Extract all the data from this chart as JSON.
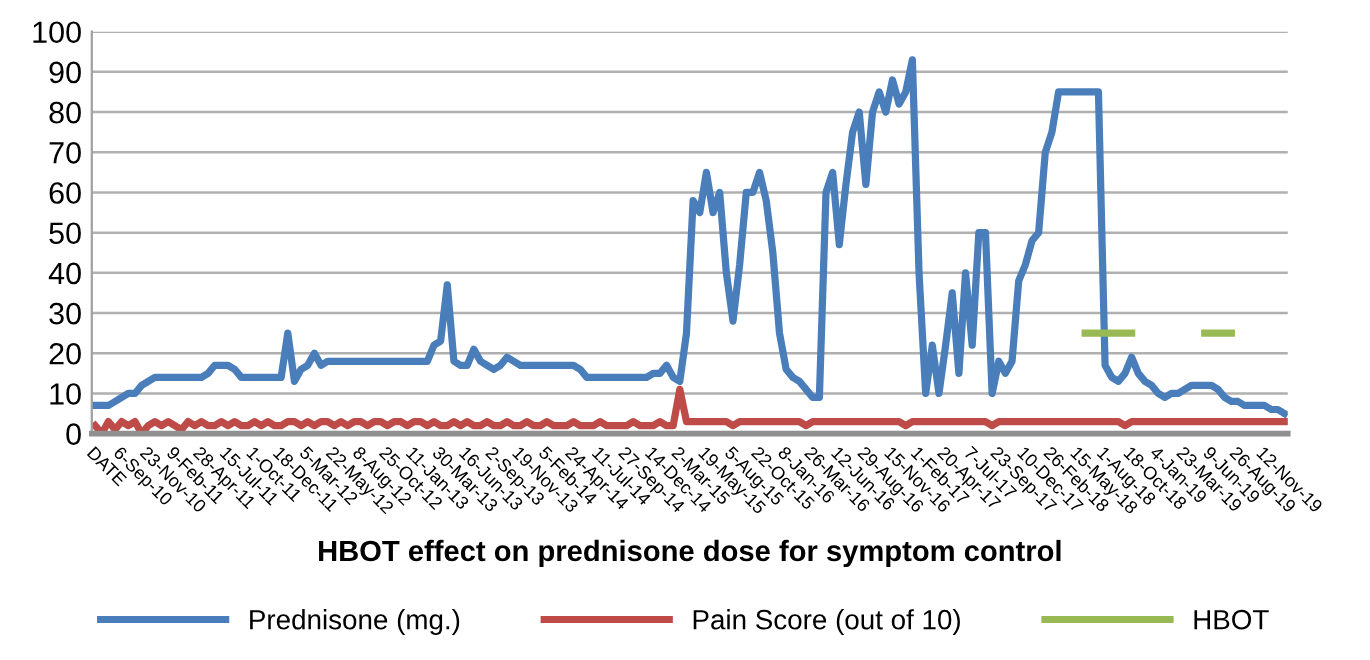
{
  "chart_data": {
    "type": "line",
    "xlabel": "HBOT effect on prednisone dose for symptom control",
    "categories": [
      "DATE",
      null,
      null,
      null,
      "6-Sep-10",
      null,
      null,
      null,
      "23-Nov-10",
      null,
      null,
      null,
      "9-Feb-11",
      null,
      null,
      null,
      "28-Apr-11",
      null,
      null,
      null,
      "15-Jul-11",
      null,
      null,
      null,
      "1-Oct-11",
      null,
      null,
      null,
      "18-Dec-11",
      null,
      null,
      null,
      "5-Mar-12",
      null,
      null,
      null,
      "22-May-12",
      null,
      null,
      null,
      "8-Aug-12",
      null,
      null,
      null,
      "25-Oct-12",
      null,
      null,
      null,
      "11-Jan-13",
      null,
      null,
      null,
      "30-Mar-13",
      null,
      null,
      null,
      "16-Jun-13",
      null,
      null,
      null,
      "2-Sep-13",
      null,
      null,
      null,
      "19-Nov-13",
      null,
      null,
      null,
      "5-Feb-14",
      null,
      null,
      null,
      "24-Apr-14",
      null,
      null,
      null,
      "11-Jul-14",
      null,
      null,
      null,
      "27-Sep-14",
      null,
      null,
      null,
      "14-Dec-14",
      null,
      null,
      null,
      "2-Mar-15",
      null,
      null,
      null,
      "19-May-15",
      null,
      null,
      null,
      "5-Aug-15",
      null,
      null,
      null,
      "22-Oct-15",
      null,
      null,
      null,
      "8-Jan-16",
      null,
      null,
      null,
      "26-Mar-16",
      null,
      null,
      null,
      "12-Jun-16",
      null,
      null,
      null,
      "29-Aug-16",
      null,
      null,
      null,
      "15-Nov-16",
      null,
      null,
      null,
      "1-Feb-17",
      null,
      null,
      null,
      "20-Apr-17",
      null,
      null,
      null,
      "7-Jul-17",
      null,
      null,
      null,
      "23-Sep-17",
      null,
      null,
      null,
      "10-Dec-17",
      null,
      null,
      null,
      "26-Feb-18",
      null,
      null,
      null,
      "15-May-18",
      null,
      null,
      null,
      "1-Aug-18",
      null,
      null,
      null,
      "18-Oct-18",
      null,
      null,
      null,
      "4-Jan-19",
      null,
      null,
      null,
      "23-Mar-19",
      null,
      null,
      null,
      "9-Jun-19",
      null,
      null,
      null,
      "26-Aug-19",
      null,
      null,
      null,
      "12-Nov-19",
      null,
      null,
      null
    ],
    "series": [
      {
        "name": "Prednisone (mg.)",
        "color": "#4a7ebb",
        "values": [
          7,
          7,
          7,
          8,
          9,
          10,
          10,
          12,
          13,
          14,
          14,
          14,
          14,
          14,
          14,
          14,
          14,
          15,
          17,
          17,
          17,
          16,
          14,
          14,
          14,
          14,
          14,
          14,
          14,
          25,
          13,
          16,
          17,
          20,
          17,
          18,
          18,
          18,
          18,
          18,
          18,
          18,
          18,
          18,
          18,
          18,
          18,
          18,
          18,
          18,
          18,
          22,
          23,
          37,
          18,
          17,
          17,
          21,
          18,
          17,
          16,
          17,
          19,
          18,
          17,
          17,
          17,
          17,
          17,
          17,
          17,
          17,
          17,
          16,
          14,
          14,
          14,
          14,
          14,
          14,
          14,
          14,
          14,
          14,
          15,
          15,
          17,
          14,
          13,
          25,
          58,
          55,
          65,
          55,
          60,
          40,
          28,
          42,
          60,
          60,
          65,
          58,
          45,
          25,
          16,
          14,
          13,
          11,
          9,
          9,
          60,
          65,
          47,
          62,
          75,
          80,
          62,
          80,
          85,
          80,
          88,
          82,
          85,
          93,
          40,
          10,
          22,
          10,
          22,
          35,
          15,
          40,
          22,
          50,
          50,
          10,
          18,
          15,
          18,
          38,
          42,
          48,
          50,
          70,
          75,
          85,
          85,
          85,
          85,
          85,
          85,
          85,
          17,
          14,
          13,
          15,
          19,
          15,
          13,
          12,
          10,
          9,
          10,
          10,
          11,
          12,
          12,
          12,
          12,
          11,
          9,
          8,
          8,
          7,
          7,
          7,
          7,
          6,
          6,
          5
        ]
      },
      {
        "name": "Pain Score (out of 10)",
        "color": "#be4b48",
        "values": [
          2,
          0,
          3,
          1,
          3,
          2,
          3,
          0,
          2,
          3,
          2,
          3,
          2,
          1,
          3,
          2,
          3,
          2,
          2,
          3,
          2,
          3,
          2,
          2,
          3,
          2,
          3,
          2,
          2,
          3,
          3,
          2,
          3,
          2,
          3,
          3,
          2,
          3,
          2,
          3,
          3,
          2,
          3,
          3,
          2,
          3,
          3,
          2,
          3,
          3,
          2,
          3,
          2,
          2,
          3,
          2,
          3,
          2,
          2,
          3,
          2,
          2,
          3,
          2,
          2,
          3,
          2,
          2,
          3,
          2,
          2,
          2,
          3,
          2,
          2,
          2,
          3,
          2,
          2,
          2,
          2,
          3,
          2,
          2,
          2,
          3,
          2,
          2,
          11,
          3,
          3,
          3,
          3,
          3,
          3,
          3,
          2,
          3,
          3,
          3,
          3,
          3,
          3,
          3,
          3,
          3,
          3,
          2,
          3,
          3,
          3,
          3,
          3,
          3,
          3,
          3,
          3,
          3,
          3,
          3,
          3,
          3,
          2,
          3,
          3,
          3,
          3,
          3,
          3,
          3,
          3,
          3,
          3,
          3,
          3,
          2,
          3,
          3,
          3,
          3,
          3,
          3,
          3,
          3,
          3,
          3,
          3,
          3,
          3,
          3,
          3,
          3,
          3,
          3,
          3,
          2,
          3,
          3,
          3,
          3,
          3,
          3,
          3,
          3,
          3,
          3,
          3,
          3,
          3,
          3,
          3,
          3,
          3,
          3,
          3,
          3,
          3,
          3,
          3,
          3
        ]
      },
      {
        "name": "HBOT",
        "color": "#98b954",
        "values": [
          null,
          null,
          null,
          null,
          null,
          null,
          null,
          null,
          null,
          null,
          null,
          null,
          null,
          null,
          null,
          null,
          null,
          null,
          null,
          null,
          null,
          null,
          null,
          null,
          null,
          null,
          null,
          null,
          null,
          null,
          null,
          null,
          null,
          null,
          null,
          null,
          null,
          null,
          null,
          null,
          null,
          null,
          null,
          null,
          null,
          null,
          null,
          null,
          null,
          null,
          null,
          null,
          null,
          null,
          null,
          null,
          null,
          null,
          null,
          null,
          null,
          null,
          null,
          null,
          null,
          null,
          null,
          null,
          null,
          null,
          null,
          null,
          null,
          null,
          null,
          null,
          null,
          null,
          null,
          null,
          null,
          null,
          null,
          null,
          null,
          null,
          null,
          null,
          null,
          null,
          null,
          null,
          null,
          null,
          null,
          null,
          null,
          null,
          null,
          null,
          null,
          null,
          null,
          null,
          null,
          null,
          null,
          null,
          null,
          null,
          null,
          null,
          null,
          null,
          null,
          null,
          null,
          null,
          null,
          null,
          null,
          null,
          null,
          null,
          null,
          null,
          null,
          null,
          null,
          null,
          null,
          null,
          null,
          null,
          null,
          null,
          null,
          null,
          null,
          null,
          null,
          null,
          null,
          null,
          null,
          null,
          null,
          null,
          null,
          25,
          25,
          25,
          25,
          25,
          25,
          25,
          25,
          null,
          null,
          null,
          null,
          null,
          null,
          null,
          null,
          null,
          null,
          null,
          null,
          null,
          null,
          null,
          null,
          null,
          null,
          null,
          null,
          null,
          null,
          null
        ]
      },
      {
        "color": "#98b954",
        "values": [
          null,
          null,
          null,
          null,
          null,
          null,
          null,
          null,
          null,
          null,
          null,
          null,
          null,
          null,
          null,
          null,
          null,
          null,
          null,
          null,
          null,
          null,
          null,
          null,
          null,
          null,
          null,
          null,
          null,
          null,
          null,
          null,
          null,
          null,
          null,
          null,
          null,
          null,
          null,
          null,
          null,
          null,
          null,
          null,
          null,
          null,
          null,
          null,
          null,
          null,
          null,
          null,
          null,
          null,
          null,
          null,
          null,
          null,
          null,
          null,
          null,
          null,
          null,
          null,
          null,
          null,
          null,
          null,
          null,
          null,
          null,
          null,
          null,
          null,
          null,
          null,
          null,
          null,
          null,
          null,
          null,
          null,
          null,
          null,
          null,
          null,
          null,
          null,
          null,
          null,
          null,
          null,
          null,
          null,
          null,
          null,
          null,
          null,
          null,
          null,
          null,
          null,
          null,
          null,
          null,
          null,
          null,
          null,
          null,
          null,
          null,
          null,
          null,
          null,
          null,
          null,
          null,
          null,
          null,
          null,
          null,
          null,
          null,
          null,
          null,
          null,
          null,
          null,
          null,
          null,
          null,
          null,
          null,
          null,
          null,
          null,
          null,
          null,
          null,
          null,
          null,
          null,
          null,
          null,
          null,
          null,
          null,
          null,
          null,
          null,
          null,
          null,
          null,
          null,
          null,
          null,
          null,
          null,
          null,
          null,
          null,
          null,
          null,
          null,
          null,
          null,
          null,
          25,
          25,
          25,
          25,
          25,
          null,
          null,
          null,
          null,
          null,
          null,
          null,
          null
        ]
      }
    ],
    "ylim": [
      0,
      100
    ],
    "yticks": [
      0,
      10,
      20,
      30,
      40,
      50,
      60,
      70,
      80,
      90,
      100
    ],
    "grid": "y",
    "legend": "bottom"
  }
}
